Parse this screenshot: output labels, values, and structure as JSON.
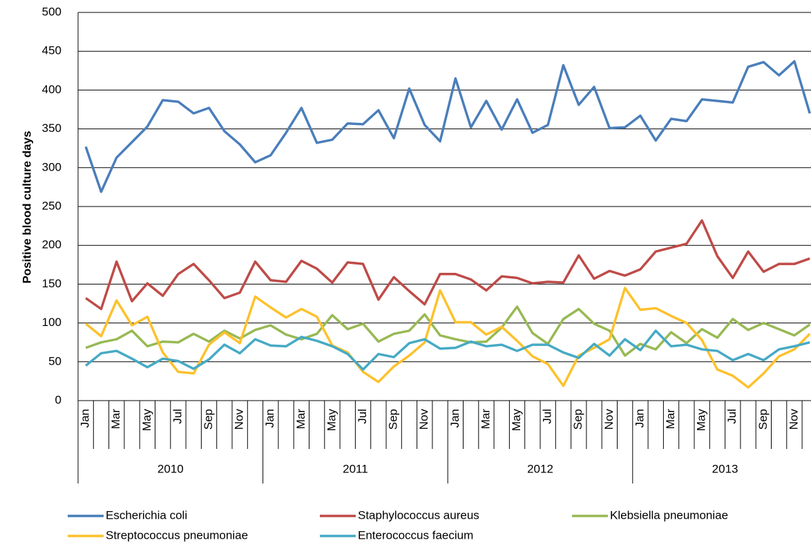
{
  "chart_data": {
    "type": "line",
    "y_label": "Positive blood culture days",
    "categories": [
      "Jan",
      null,
      "Mar",
      null,
      "May",
      null,
      "Jul",
      null,
      "Sep",
      null,
      "Nov",
      null,
      "Jan",
      null,
      "Mar",
      null,
      "May",
      null,
      "Jul",
      null,
      "Sep",
      null,
      "Nov",
      null,
      "Jan",
      null,
      "Mar",
      null,
      "May",
      null,
      "Jul",
      null,
      "Sep",
      null,
      "Nov",
      null,
      "Jan",
      null,
      "Mar",
      null,
      "May",
      null,
      "Jul",
      null,
      "Sep",
      null,
      "Nov",
      null
    ],
    "groups": [
      "2010",
      "2011",
      "2012",
      "2013"
    ],
    "ylim": [
      0,
      500
    ],
    "yticks": [
      0,
      50,
      100,
      150,
      200,
      250,
      300,
      350,
      400,
      450,
      500
    ],
    "grid": true,
    "series": [
      {
        "name": "Escherichia coli",
        "color": "#4a7ebb",
        "values": [
          327,
          269,
          313,
          333,
          353,
          387,
          385,
          370,
          377,
          347,
          330,
          307,
          316,
          345,
          377,
          332,
          336,
          357,
          356,
          374,
          338,
          402,
          355,
          334,
          415,
          352,
          386,
          349,
          388,
          345,
          355,
          432,
          381,
          404,
          351,
          352,
          367,
          335,
          363,
          360,
          388,
          386,
          384,
          430,
          436,
          419,
          437,
          370
        ]
      },
      {
        "name": "Staphylococcus aureus",
        "color": "#be4b48",
        "values": [
          132,
          118,
          179,
          128,
          151,
          135,
          163,
          176,
          155,
          132,
          139,
          179,
          155,
          153,
          180,
          170,
          152,
          178,
          176,
          130,
          159,
          141,
          124,
          163,
          163,
          156,
          142,
          160,
          158,
          151,
          153,
          152,
          187,
          157,
          167,
          161,
          169,
          192,
          197,
          202,
          232,
          186,
          158,
          192,
          166,
          176,
          176,
          183
        ]
      },
      {
        "name": "Klebsiella pneumoniae",
        "color": "#98b954",
        "values": [
          68,
          75,
          79,
          90,
          70,
          76,
          75,
          86,
          76,
          90,
          80,
          91,
          97,
          85,
          79,
          86,
          110,
          92,
          99,
          76,
          86,
          90,
          111,
          84,
          79,
          75,
          76,
          94,
          121,
          87,
          73,
          105,
          118,
          99,
          90,
          58,
          73,
          66,
          88,
          74,
          92,
          81,
          105,
          91,
          100,
          92,
          84,
          98
        ]
      },
      {
        "name": "Streptococcus pneumoniae",
        "color": "#fdc12c",
        "values": [
          99,
          83,
          129,
          97,
          108,
          62,
          37,
          35,
          72,
          88,
          74,
          134,
          120,
          107,
          118,
          108,
          71,
          62,
          37,
          24,
          44,
          58,
          75,
          142,
          101,
          101,
          85,
          95,
          77,
          57,
          47,
          19,
          58,
          68,
          79,
          145,
          117,
          119,
          109,
          100,
          78,
          40,
          32,
          17,
          35,
          57,
          66,
          86
        ]
      },
      {
        "name": "Enterococcus faecium",
        "color": "#46aac5",
        "values": [
          45,
          61,
          64,
          54,
          43,
          54,
          51,
          41,
          53,
          72,
          61,
          79,
          71,
          70,
          82,
          77,
          70,
          60,
          40,
          60,
          56,
          74,
          79,
          67,
          68,
          76,
          70,
          72,
          64,
          72,
          72,
          62,
          55,
          73,
          58,
          79,
          65,
          90,
          70,
          72,
          66,
          64,
          52,
          60,
          52,
          66,
          70,
          75
        ]
      }
    ]
  }
}
